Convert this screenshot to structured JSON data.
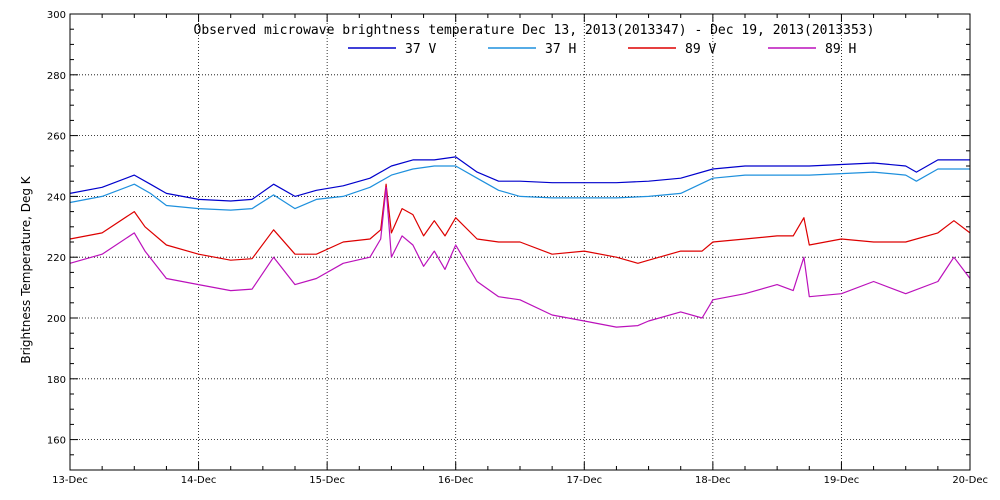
{
  "chart_data": {
    "type": "line",
    "title": "Observed microwave brightness temperature Dec 13, 2013(2013347) - Dec 19, 2013(2013353)",
    "xlabel": "",
    "ylabel": "Brightness Temperature, Deg K",
    "ylim": [
      150,
      300
    ],
    "yticks": [
      160,
      180,
      200,
      220,
      240,
      260,
      280,
      300
    ],
    "xlim": [
      "2013-12-13",
      "2013-12-20"
    ],
    "x_tick_labels": [
      "13-Dec",
      "14-Dec",
      "15-Dec",
      "16-Dec",
      "17-Dec",
      "18-Dec",
      "19-Dec",
      "20-Dec"
    ],
    "x_tick_dates": [
      "2013-12-13",
      "2013-12-14",
      "2013-12-15",
      "2013-12-16",
      "2013-12-17",
      "2013-12-18",
      "2013-12-19",
      "2013-12-20"
    ],
    "grid": true,
    "legend_position": "top-center",
    "series": [
      {
        "name": "37 V",
        "color": "#0000cc",
        "x": [
          "2013-12-13T00:00",
          "2013-12-13T06:00",
          "2013-12-13T12:00",
          "2013-12-13T15:00",
          "2013-12-13T18:00",
          "2013-12-14T00:00",
          "2013-12-14T06:00",
          "2013-12-14T10:00",
          "2013-12-14T14:00",
          "2013-12-14T18:00",
          "2013-12-14T22:00",
          "2013-12-15T03:00",
          "2013-12-15T08:00",
          "2013-12-15T12:00",
          "2013-12-15T16:00",
          "2013-12-15T20:00",
          "2013-12-16T00:00",
          "2013-12-16T04:00",
          "2013-12-16T08:00",
          "2013-12-16T12:00",
          "2013-12-16T18:00",
          "2013-12-17T00:00",
          "2013-12-17T06:00",
          "2013-12-17T12:00",
          "2013-12-17T18:00",
          "2013-12-18T00:00",
          "2013-12-18T06:00",
          "2013-12-18T12:00",
          "2013-12-18T18:00",
          "2013-12-19T00:00",
          "2013-12-19T06:00",
          "2013-12-19T12:00",
          "2013-12-19T14:00",
          "2013-12-19T18:00",
          "2013-12-20T00:00"
        ],
        "values": [
          241,
          243,
          247,
          244,
          241,
          239,
          238.5,
          239,
          244,
          240,
          242,
          243.5,
          246,
          250,
          252,
          252,
          253,
          248,
          245,
          245,
          244.5,
          244.5,
          244.5,
          245,
          246,
          249,
          250,
          250,
          250,
          250.5,
          251,
          250,
          248,
          252,
          252
        ]
      },
      {
        "name": "37 H",
        "color": "#1e90dd",
        "x": [
          "2013-12-13T00:00",
          "2013-12-13T06:00",
          "2013-12-13T12:00",
          "2013-12-13T15:00",
          "2013-12-13T18:00",
          "2013-12-14T00:00",
          "2013-12-14T06:00",
          "2013-12-14T10:00",
          "2013-12-14T14:00",
          "2013-12-14T18:00",
          "2013-12-14T22:00",
          "2013-12-15T03:00",
          "2013-12-15T08:00",
          "2013-12-15T12:00",
          "2013-12-15T16:00",
          "2013-12-15T20:00",
          "2013-12-16T00:00",
          "2013-12-16T04:00",
          "2013-12-16T08:00",
          "2013-12-16T12:00",
          "2013-12-16T18:00",
          "2013-12-17T00:00",
          "2013-12-17T06:00",
          "2013-12-17T12:00",
          "2013-12-17T18:00",
          "2013-12-18T00:00",
          "2013-12-18T06:00",
          "2013-12-18T12:00",
          "2013-12-18T18:00",
          "2013-12-19T00:00",
          "2013-12-19T06:00",
          "2013-12-19T12:00",
          "2013-12-19T14:00",
          "2013-12-19T18:00",
          "2013-12-20T00:00"
        ],
        "values": [
          238,
          240,
          244,
          241,
          237,
          236,
          235.5,
          236,
          240.5,
          236,
          239,
          240,
          243,
          247,
          249,
          250,
          250,
          246,
          242,
          240,
          239.5,
          239.5,
          239.5,
          240,
          241,
          246,
          247,
          247,
          247,
          247.5,
          248,
          247,
          245,
          249,
          249
        ]
      },
      {
        "name": "89 V",
        "color": "#dd0000",
        "x": [
          "2013-12-13T00:00",
          "2013-12-13T06:00",
          "2013-12-13T12:00",
          "2013-12-13T14:00",
          "2013-12-13T18:00",
          "2013-12-14T00:00",
          "2013-12-14T06:00",
          "2013-12-14T10:00",
          "2013-12-14T14:00",
          "2013-12-14T18:00",
          "2013-12-14T22:00",
          "2013-12-15T03:00",
          "2013-12-15T08:00",
          "2013-12-15T10:00",
          "2013-12-15T11:00",
          "2013-12-15T12:00",
          "2013-12-15T14:00",
          "2013-12-15T16:00",
          "2013-12-15T18:00",
          "2013-12-15T20:00",
          "2013-12-15T22:00",
          "2013-12-16T00:00",
          "2013-12-16T04:00",
          "2013-12-16T08:00",
          "2013-12-16T12:00",
          "2013-12-16T18:00",
          "2013-12-17T00:00",
          "2013-12-17T06:00",
          "2013-12-17T10:00",
          "2013-12-17T12:00",
          "2013-12-17T18:00",
          "2013-12-17T22:00",
          "2013-12-18T00:00",
          "2013-12-18T06:00",
          "2013-12-18T12:00",
          "2013-12-18T15:00",
          "2013-12-18T17:00",
          "2013-12-18T18:00",
          "2013-12-19T00:00",
          "2013-12-19T06:00",
          "2013-12-19T12:00",
          "2013-12-19T18:00",
          "2013-12-19T21:00",
          "2013-12-20T00:00"
        ],
        "values": [
          226,
          228,
          235,
          230,
          224,
          221,
          219,
          219.5,
          229,
          221,
          221,
          225,
          226,
          229,
          244,
          228,
          236,
          234,
          227,
          232,
          227,
          233,
          226,
          225,
          225,
          221,
          222,
          220,
          218,
          219,
          222,
          222,
          225,
          226,
          227,
          227,
          233,
          224,
          226,
          225,
          225,
          228,
          232,
          228
        ]
      },
      {
        "name": "89 H",
        "color": "#bb11bb",
        "x": [
          "2013-12-13T00:00",
          "2013-12-13T06:00",
          "2013-12-13T12:00",
          "2013-12-13T14:00",
          "2013-12-13T18:00",
          "2013-12-14T00:00",
          "2013-12-14T06:00",
          "2013-12-14T10:00",
          "2013-12-14T14:00",
          "2013-12-14T18:00",
          "2013-12-14T22:00",
          "2013-12-15T03:00",
          "2013-12-15T08:00",
          "2013-12-15T10:00",
          "2013-12-15T11:00",
          "2013-12-15T12:00",
          "2013-12-15T14:00",
          "2013-12-15T16:00",
          "2013-12-15T18:00",
          "2013-12-15T20:00",
          "2013-12-15T22:00",
          "2013-12-16T00:00",
          "2013-12-16T04:00",
          "2013-12-16T08:00",
          "2013-12-16T12:00",
          "2013-12-16T18:00",
          "2013-12-17T00:00",
          "2013-12-17T06:00",
          "2013-12-17T10:00",
          "2013-12-17T12:00",
          "2013-12-17T18:00",
          "2013-12-17T22:00",
          "2013-12-18T00:00",
          "2013-12-18T06:00",
          "2013-12-18T12:00",
          "2013-12-18T15:00",
          "2013-12-18T17:00",
          "2013-12-18T18:00",
          "2013-12-19T00:00",
          "2013-12-19T06:00",
          "2013-12-19T12:00",
          "2013-12-19T18:00",
          "2013-12-19T21:00",
          "2013-12-20T00:00"
        ],
        "values": [
          218,
          221,
          228,
          222,
          213,
          211,
          209,
          209.5,
          220,
          211,
          213,
          218,
          220,
          226,
          243,
          220,
          227,
          224,
          217,
          222,
          216,
          224,
          212,
          207,
          206,
          201,
          199,
          197,
          197.5,
          199,
          202,
          200,
          206,
          208,
          211,
          209,
          220,
          207,
          208,
          212,
          208,
          212,
          220,
          213
        ]
      }
    ]
  }
}
